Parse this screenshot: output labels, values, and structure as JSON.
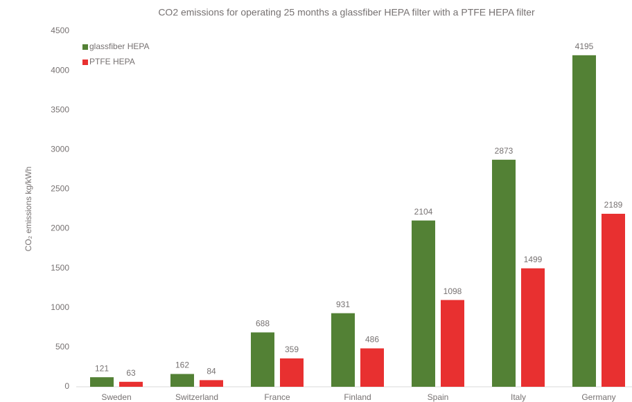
{
  "chart_data": {
    "type": "bar",
    "title": "CO2 emissions for operating 25 months a glassfiber HEPA filter with a PTFE HEPA filter",
    "y_label": "CO₂ emissions kg/kWh",
    "categories": [
      "Sweden",
      "Switzerland",
      "France",
      "Finland",
      "Spain",
      "Italy",
      "Germany"
    ],
    "series": [
      {
        "name": "glassfiber HEPA",
        "color": "#538135",
        "values": [
          121,
          162,
          688,
          931,
          2104,
          2873,
          4195
        ]
      },
      {
        "name": "PTFE HEPA",
        "color": "#e83030",
        "values": [
          63,
          84,
          359,
          486,
          1098,
          1499,
          2189
        ]
      }
    ],
    "ylim": [
      0,
      4500
    ],
    "yticks": [
      0,
      500,
      1000,
      1500,
      2000,
      2500,
      3000,
      3500,
      4000,
      4500
    ],
    "legend": "top-left"
  }
}
